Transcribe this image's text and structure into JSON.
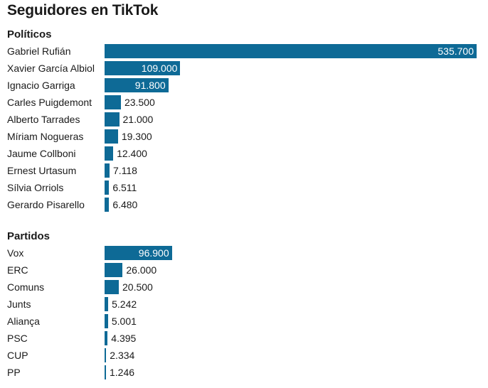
{
  "colors": {
    "bar": "#0e6a96",
    "text": "#1a1a1a",
    "value_inside": "#ffffff"
  },
  "chart_data": {
    "type": "bar",
    "orientation": "horizontal",
    "title": "Seguidores en TikTok",
    "xlim": [
      0,
      535700
    ],
    "grid": false,
    "groups": [
      {
        "title": "Políticos",
        "categories": [
          "Gabriel Rufián",
          "Xavier García Albiol",
          "Ignacio Garriga",
          "Carles Puigdemont",
          "Alberto Tarrades",
          "Míriam Nogueras",
          "Jaume Collboni",
          "Ernest Urtasum",
          "Sílvia Orriols",
          "Gerardo Pisarello"
        ],
        "values": [
          535700,
          109000,
          91800,
          23500,
          21000,
          19300,
          12400,
          7118,
          6511,
          6480
        ],
        "value_labels": [
          "535.700",
          "109.000",
          "91.800",
          "23.500",
          "21.000",
          "19.300",
          "12.400",
          "7.118",
          "6.511",
          "6.480"
        ]
      },
      {
        "title": "Partidos",
        "categories": [
          "Vox",
          "ERC",
          "Comuns",
          "Junts",
          "Aliança",
          "PSC",
          "CUP",
          "PP"
        ],
        "values": [
          96900,
          26000,
          20500,
          5242,
          5001,
          4395,
          2334,
          1246
        ],
        "value_labels": [
          "96.900",
          "26.000",
          "20.500",
          "5.242",
          "5.001",
          "4.395",
          "2.334",
          "1.246"
        ]
      }
    ]
  }
}
